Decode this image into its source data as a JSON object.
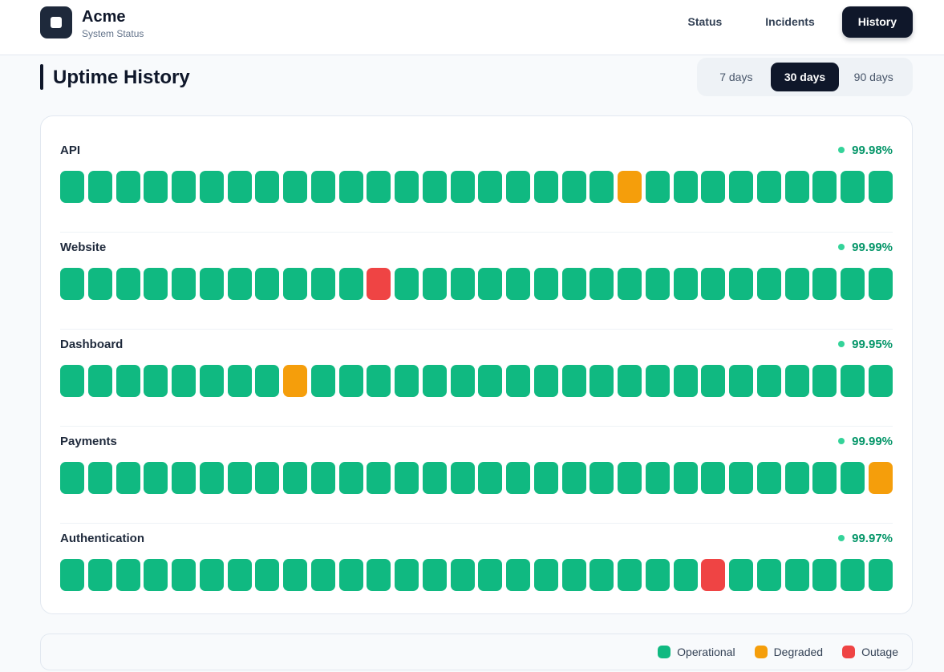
{
  "header": {
    "brand": "Acme",
    "subtitle": "System Status",
    "nav": [
      {
        "label": "Status",
        "active": false
      },
      {
        "label": "Incidents",
        "active": false
      },
      {
        "label": "History",
        "active": true
      }
    ]
  },
  "title": "Uptime History",
  "ranges": [
    {
      "label": "7 days",
      "active": false
    },
    {
      "label": "30 days",
      "active": true
    },
    {
      "label": "90 days",
      "active": false
    }
  ],
  "legend": [
    {
      "label": "Operational",
      "color": "#10b981"
    },
    {
      "label": "Degraded",
      "color": "#f59e0b"
    },
    {
      "label": "Outage",
      "color": "#ef4444"
    }
  ],
  "services": [
    {
      "name": "API",
      "uptime": "99.98%",
      "days": [
        "Operational",
        "Operational",
        "Operational",
        "Operational",
        "Operational",
        "Operational",
        "Operational",
        "Operational",
        "Operational",
        "Operational",
        "Operational",
        "Operational",
        "Operational",
        "Operational",
        "Operational",
        "Operational",
        "Operational",
        "Operational",
        "Operational",
        "Operational",
        "Degraded",
        "Operational",
        "Operational",
        "Operational",
        "Operational",
        "Operational",
        "Operational",
        "Operational",
        "Operational",
        "Operational"
      ]
    },
    {
      "name": "Website",
      "uptime": "99.99%",
      "days": [
        "Operational",
        "Operational",
        "Operational",
        "Operational",
        "Operational",
        "Operational",
        "Operational",
        "Operational",
        "Operational",
        "Operational",
        "Operational",
        "Outage",
        "Operational",
        "Operational",
        "Operational",
        "Operational",
        "Operational",
        "Operational",
        "Operational",
        "Operational",
        "Operational",
        "Operational",
        "Operational",
        "Operational",
        "Operational",
        "Operational",
        "Operational",
        "Operational",
        "Operational",
        "Operational"
      ]
    },
    {
      "name": "Dashboard",
      "uptime": "99.95%",
      "days": [
        "Operational",
        "Operational",
        "Operational",
        "Operational",
        "Operational",
        "Operational",
        "Operational",
        "Operational",
        "Degraded",
        "Operational",
        "Operational",
        "Operational",
        "Operational",
        "Operational",
        "Operational",
        "Operational",
        "Operational",
        "Operational",
        "Operational",
        "Operational",
        "Operational",
        "Operational",
        "Operational",
        "Operational",
        "Operational",
        "Operational",
        "Operational",
        "Operational",
        "Operational",
        "Operational"
      ]
    },
    {
      "name": "Payments",
      "uptime": "99.99%",
      "days": [
        "Operational",
        "Operational",
        "Operational",
        "Operational",
        "Operational",
        "Operational",
        "Operational",
        "Operational",
        "Operational",
        "Operational",
        "Operational",
        "Operational",
        "Operational",
        "Operational",
        "Operational",
        "Operational",
        "Operational",
        "Operational",
        "Operational",
        "Operational",
        "Operational",
        "Operational",
        "Operational",
        "Operational",
        "Operational",
        "Operational",
        "Operational",
        "Operational",
        "Operational",
        "Degraded"
      ]
    },
    {
      "name": "Authentication",
      "uptime": "99.97%",
      "days": [
        "Operational",
        "Operational",
        "Operational",
        "Operational",
        "Operational",
        "Operational",
        "Operational",
        "Operational",
        "Operational",
        "Operational",
        "Operational",
        "Operational",
        "Operational",
        "Operational",
        "Operational",
        "Operational",
        "Operational",
        "Operational",
        "Operational",
        "Operational",
        "Operational",
        "Operational",
        "Operational",
        "Outage",
        "Operational",
        "Operational",
        "Operational",
        "Operational",
        "Operational",
        "Operational"
      ]
    }
  ]
}
